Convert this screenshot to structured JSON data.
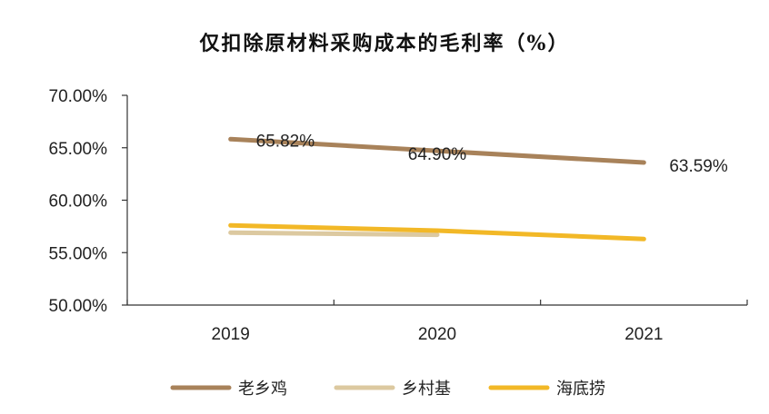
{
  "chart_data": {
    "type": "line",
    "title": "仅扣除原材料采购成本的毛利率（%）",
    "categories": [
      "2019",
      "2020",
      "2021"
    ],
    "ylim": [
      50,
      70
    ],
    "yticks": [
      50,
      55,
      60,
      65,
      70
    ],
    "ytick_labels": [
      "50.00%",
      "55.00%",
      "60.00%",
      "65.00%",
      "70.00%"
    ],
    "legend_position": "bottom",
    "grid": false,
    "series": [
      {
        "name": "老乡鸡",
        "color": "#A8825A",
        "values": [
          65.82,
          null,
          63.59
        ],
        "point_labels": [
          "65.82%",
          "64.90%",
          "63.59%"
        ],
        "label_values": [
          65.82,
          64.9,
          63.59
        ]
      },
      {
        "name": "乡村基",
        "color": "#DCC9A0",
        "values": [
          56.9,
          56.7,
          null
        ],
        "point_labels": []
      },
      {
        "name": "海底捞",
        "color": "#F2B827",
        "values": [
          57.6,
          57.1,
          56.3
        ],
        "point_labels": []
      }
    ]
  }
}
